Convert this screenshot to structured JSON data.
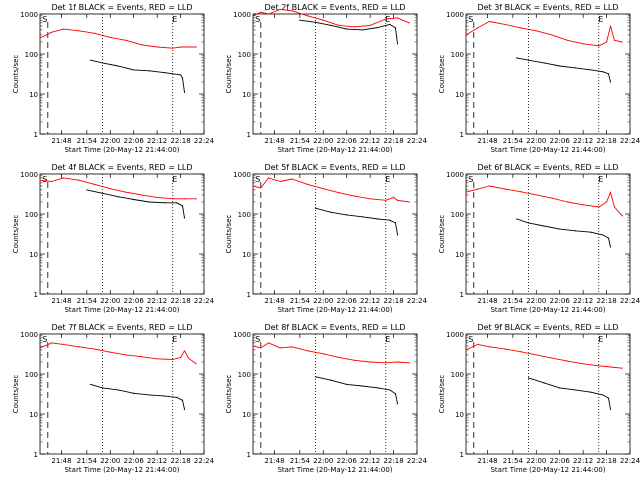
{
  "figure": {
    "x_axis_label": "Start Time (20-May-12 21:44:00)",
    "y_axis_label": "Counts/sec",
    "x_tick_labels": [
      "21:48",
      "21:54",
      "22:00",
      "22:06",
      "22:12",
      "22:18",
      "22:24"
    ],
    "y_tick_labels": [
      "1",
      "10",
      "100",
      "1000"
    ],
    "marker_S": "S",
    "marker_E": "E",
    "colors": {
      "events": "#000000",
      "lld": "#ff0000",
      "background": "#ffffff"
    }
  },
  "chart_data": [
    {
      "type": "line",
      "title": "Det 1f BLACK = Events, RED = LLD",
      "xlabel": "Start Time (20-May-12 21:44:00)",
      "ylabel": "Counts/sec",
      "x_unit": "minutes after 21:44:00",
      "ylim": [
        1,
        1000
      ],
      "yscale": "log",
      "xlim": [
        0,
        42
      ],
      "vertical_lines": {
        "dashed": [
          2
        ],
        "dotted": [
          16,
          34
        ]
      },
      "series": [
        {
          "name": "Events",
          "color": "#000000",
          "x": [
            13,
            16,
            20,
            24,
            28,
            32,
            36,
            36.5,
            37
          ],
          "values": [
            70,
            60,
            50,
            40,
            38,
            34,
            30,
            25,
            11
          ]
        },
        {
          "name": "LLD",
          "color": "#ff0000",
          "x": [
            0,
            3,
            6,
            10,
            14,
            18,
            22,
            26,
            30,
            34,
            36,
            38,
            40
          ],
          "values": [
            250,
            350,
            420,
            380,
            330,
            260,
            220,
            170,
            150,
            140,
            150,
            150,
            150
          ]
        }
      ]
    },
    {
      "type": "line",
      "title": "Det 2f BLACK = Events, RED = LLD",
      "xlabel": "Start Time (20-May-12 21:44:00)",
      "ylabel": "Counts/sec",
      "x_unit": "minutes after 21:44:00",
      "ylim": [
        1,
        1000
      ],
      "yscale": "log",
      "xlim": [
        0,
        42
      ],
      "vertical_lines": {
        "dashed": [
          2
        ],
        "dotted": [
          16,
          34
        ]
      },
      "series": [
        {
          "name": "Events",
          "color": "#000000",
          "x": [
            12,
            16,
            20,
            24,
            28,
            32,
            35,
            36.5,
            37
          ],
          "values": [
            700,
            620,
            520,
            420,
            400,
            460,
            550,
            450,
            180
          ]
        },
        {
          "name": "LLD",
          "color": "#ff0000",
          "x": [
            0,
            2,
            4,
            7,
            10,
            14,
            18,
            22,
            26,
            30,
            34,
            37,
            40
          ],
          "values": [
            900,
            1100,
            1000,
            1300,
            1200,
            900,
            700,
            520,
            480,
            520,
            750,
            800,
            600
          ]
        }
      ]
    },
    {
      "type": "line",
      "title": "Det 3f BLACK = Events, RED = LLD",
      "xlabel": "Start Time (20-May-12 21:44:00)",
      "ylabel": "Counts/sec",
      "x_unit": "minutes after 21:44:00",
      "ylim": [
        1,
        1000
      ],
      "yscale": "log",
      "xlim": [
        0,
        42
      ],
      "vertical_lines": {
        "dashed": [
          2
        ],
        "dotted": [
          16,
          34
        ]
      },
      "series": [
        {
          "name": "Events",
          "color": "#000000",
          "x": [
            13,
            16,
            20,
            24,
            28,
            32,
            35,
            36.5,
            37
          ],
          "values": [
            80,
            70,
            60,
            50,
            45,
            40,
            36,
            32,
            20
          ]
        },
        {
          "name": "LLD",
          "color": "#ff0000",
          "x": [
            0,
            3,
            6,
            10,
            14,
            18,
            22,
            26,
            30,
            34,
            36,
            37,
            38,
            40
          ],
          "values": [
            300,
            450,
            650,
            550,
            450,
            380,
            300,
            220,
            180,
            160,
            200,
            500,
            220,
            200
          ]
        }
      ]
    },
    {
      "type": "line",
      "title": "Det 4f BLACK = Events, RED = LLD",
      "xlabel": "Start Time (20-May-12 21:44:00)",
      "ylabel": "Counts/sec",
      "x_unit": "minutes after 21:44:00",
      "ylim": [
        1,
        1000
      ],
      "yscale": "log",
      "xlim": [
        0,
        42
      ],
      "vertical_lines": {
        "dashed": [
          2
        ],
        "dotted": [
          16,
          34
        ]
      },
      "series": [
        {
          "name": "Events",
          "color": "#000000",
          "x": [
            12,
            16,
            20,
            24,
            28,
            32,
            35,
            36.5,
            37
          ],
          "values": [
            400,
            330,
            270,
            230,
            200,
            190,
            190,
            160,
            80
          ]
        },
        {
          "name": "LLD",
          "color": "#ff0000",
          "x": [
            0,
            3,
            6,
            10,
            14,
            18,
            22,
            26,
            30,
            34,
            37,
            40
          ],
          "values": [
            700,
            650,
            800,
            700,
            550,
            430,
            350,
            300,
            260,
            240,
            240,
            240
          ]
        }
      ]
    },
    {
      "type": "line",
      "title": "Det 5f BLACK = Events, RED = LLD",
      "xlabel": "Start Time (20-May-12 21:44:00)",
      "ylabel": "Counts/sec",
      "x_unit": "minutes after 21:44:00",
      "ylim": [
        1,
        1000
      ],
      "yscale": "log",
      "xlim": [
        0,
        42
      ],
      "vertical_lines": {
        "dashed": [
          2
        ],
        "dotted": [
          16,
          34
        ]
      },
      "series": [
        {
          "name": "Events",
          "color": "#000000",
          "x": [
            16,
            20,
            24,
            28,
            32,
            35,
            36.5,
            37
          ],
          "values": [
            140,
            110,
            95,
            85,
            75,
            70,
            60,
            30
          ]
        },
        {
          "name": "LLD",
          "color": "#ff0000",
          "x": [
            0,
            2,
            4,
            7,
            10,
            14,
            18,
            22,
            26,
            30,
            34,
            36,
            37,
            40
          ],
          "values": [
            500,
            450,
            800,
            650,
            750,
            550,
            430,
            340,
            280,
            240,
            220,
            260,
            220,
            200
          ]
        }
      ]
    },
    {
      "type": "line",
      "title": "Det 6f BLACK = Events, RED = LLD",
      "xlabel": "Start Time (20-May-12 21:44:00)",
      "ylabel": "Counts/sec",
      "x_unit": "minutes after 21:44:00",
      "ylim": [
        1,
        1000
      ],
      "yscale": "log",
      "xlim": [
        0,
        42
      ],
      "vertical_lines": {
        "dashed": [
          2
        ],
        "dotted": [
          16,
          34
        ]
      },
      "series": [
        {
          "name": "Events",
          "color": "#000000",
          "x": [
            13,
            16,
            20,
            24,
            28,
            32,
            35,
            36.5,
            37
          ],
          "values": [
            75,
            60,
            50,
            42,
            38,
            35,
            30,
            25,
            15
          ]
        },
        {
          "name": "LLD",
          "color": "#ff0000",
          "x": [
            0,
            3,
            6,
            10,
            14,
            18,
            22,
            26,
            30,
            34,
            36,
            37,
            38,
            40
          ],
          "values": [
            350,
            420,
            500,
            420,
            360,
            300,
            250,
            200,
            170,
            150,
            200,
            350,
            150,
            90
          ]
        }
      ]
    },
    {
      "type": "line",
      "title": "Det 7f BLACK = Events, RED = LLD",
      "xlabel": "Start Time (20-May-12 21:44:00)",
      "ylabel": "Counts/sec",
      "x_unit": "minutes after 21:44:00",
      "ylim": [
        1,
        1000
      ],
      "yscale": "log",
      "xlim": [
        0,
        42
      ],
      "vertical_lines": {
        "dashed": [
          2
        ],
        "dotted": [
          16,
          34
        ]
      },
      "series": [
        {
          "name": "Events",
          "color": "#000000",
          "x": [
            13,
            16,
            20,
            24,
            28,
            32,
            35,
            36.5,
            37
          ],
          "values": [
            55,
            45,
            40,
            33,
            30,
            28,
            26,
            22,
            13
          ]
        },
        {
          "name": "LLD",
          "color": "#ff0000",
          "x": [
            0,
            3,
            6,
            10,
            14,
            18,
            22,
            26,
            30,
            34,
            36,
            37,
            38,
            40
          ],
          "values": [
            450,
            600,
            550,
            480,
            420,
            350,
            300,
            270,
            240,
            230,
            260,
            380,
            250,
            180
          ]
        }
      ]
    },
    {
      "type": "line",
      "title": "Det 8f BLACK = Events, RED = LLD",
      "xlabel": "Start Time (20-May-12 21:44:00)",
      "ylabel": "Counts/sec",
      "x_unit": "minutes after 21:44:00",
      "ylim": [
        1,
        1000
      ],
      "yscale": "log",
      "xlim": [
        0,
        42
      ],
      "vertical_lines": {
        "dashed": [
          2
        ],
        "dotted": [
          16,
          34
        ]
      },
      "series": [
        {
          "name": "Events",
          "color": "#000000",
          "x": [
            16,
            20,
            24,
            28,
            32,
            35,
            36.5,
            37
          ],
          "values": [
            85,
            70,
            55,
            50,
            45,
            40,
            32,
            18
          ]
        },
        {
          "name": "LLD",
          "color": "#ff0000",
          "x": [
            0,
            2,
            4,
            7,
            10,
            14,
            18,
            22,
            26,
            30,
            34,
            37,
            40
          ],
          "values": [
            500,
            450,
            600,
            450,
            480,
            380,
            320,
            260,
            220,
            200,
            190,
            200,
            190
          ]
        }
      ]
    },
    {
      "type": "line",
      "title": "Det 9f BLACK = Events, RED = LLD",
      "xlabel": "Start Time (20-May-12 21:44:00)",
      "ylabel": "Counts/sec",
      "x_unit": "minutes after 21:44:00",
      "ylim": [
        1,
        1000
      ],
      "yscale": "log",
      "xlim": [
        0,
        42
      ],
      "vertical_lines": {
        "dashed": [
          2
        ],
        "dotted": [
          16,
          34
        ]
      },
      "series": [
        {
          "name": "Events",
          "color": "#000000",
          "x": [
            16,
            20,
            24,
            28,
            32,
            35,
            36.5,
            37
          ],
          "values": [
            80,
            60,
            45,
            40,
            35,
            30,
            25,
            13
          ]
        },
        {
          "name": "LLD",
          "color": "#ff0000",
          "x": [
            0,
            3,
            6,
            10,
            14,
            18,
            22,
            26,
            30,
            34,
            37,
            40
          ],
          "values": [
            400,
            550,
            480,
            420,
            360,
            300,
            250,
            210,
            180,
            160,
            150,
            140
          ]
        }
      ]
    }
  ]
}
